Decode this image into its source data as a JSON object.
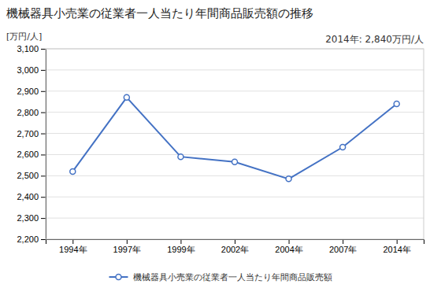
{
  "chart_data": {
    "type": "line",
    "title": "機械器具小売業の従業者一人当たり年間商品販売額の推移",
    "y_label": "[万円/人]",
    "annotation": "2014年: 2,840万円/人",
    "categories": [
      "1994年",
      "1997年",
      "1999年",
      "2002年",
      "2004年",
      "2007年",
      "2014年"
    ],
    "series": [
      {
        "name": "機械器具小売業の従業者一人当たり年間商品販売額",
        "color": "#4472C4",
        "marker": "circle",
        "values": [
          2520,
          2870,
          2590,
          2565,
          2485,
          2635,
          2840
        ]
      }
    ],
    "ylim": [
      2200,
      3100
    ],
    "yticks": [
      {
        "value": 2200,
        "label": "2,200"
      },
      {
        "value": 2300,
        "label": "2,300"
      },
      {
        "value": 2400,
        "label": "2,400"
      },
      {
        "value": 2500,
        "label": "2,500"
      },
      {
        "value": 2600,
        "label": "2,600"
      },
      {
        "value": 2700,
        "label": "2,700"
      },
      {
        "value": 2800,
        "label": "2,800"
      },
      {
        "value": 2900,
        "label": "2,900"
      },
      {
        "value": 3000,
        "label": "3,000"
      },
      {
        "value": 3100,
        "label": "3,100"
      }
    ],
    "grid": true,
    "legend": "bottom"
  }
}
